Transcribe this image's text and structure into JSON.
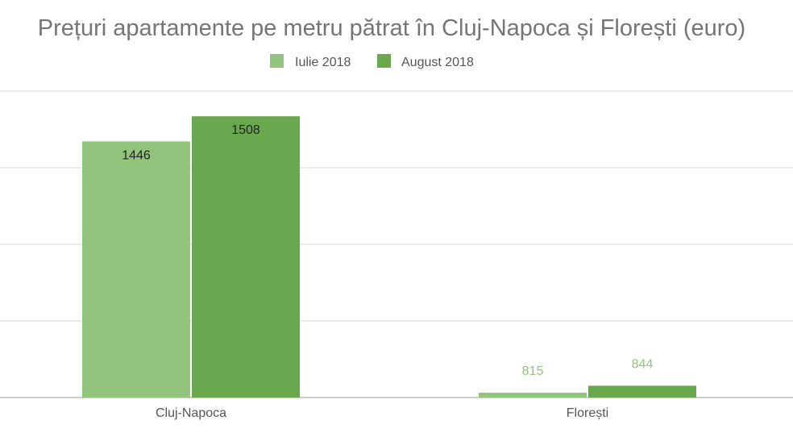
{
  "chart_data": {
    "type": "bar",
    "title": "Prețuri apartamente pe metru pătrat în Cluj-Napoca și Florești (euro)",
    "categories": [
      "Cluj-Napoca",
      "Florești"
    ],
    "series": [
      {
        "name": "Iulie 2018",
        "values": [
          1446,
          815
        ],
        "color": "#93c47d"
      },
      {
        "name": "August 2018",
        "values": [
          1508,
          844
        ],
        "color": "#6aa84f"
      }
    ],
    "ylim": [
      815,
      1570
    ],
    "grid": true,
    "legend_position": "top-center",
    "label_color_outside": "#93c47d",
    "label_color_inside": "#222222"
  }
}
